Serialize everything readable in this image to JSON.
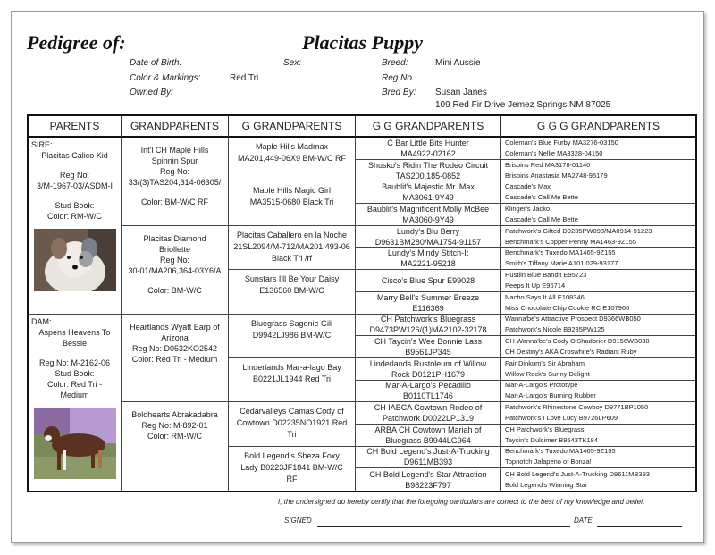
{
  "header": {
    "title_label": "Pedigree of:",
    "dog_name": "Placitas Puppy",
    "dob_label": "Date of Birth:",
    "dob": "",
    "sex_label": "Sex:",
    "sex": "",
    "breed_label": "Breed:",
    "breed": "Mini Aussie",
    "color_label": "Color & Markings:",
    "color": "Red Tri",
    "reg_label": "Reg No.:",
    "reg": "",
    "owned_label": "Owned By:",
    "owned": "",
    "bred_label": "Bred By:",
    "bred_name": "Susan Janes",
    "bred_address": "109 Red Fir Drive Jemez Springs NM 87025"
  },
  "columns": [
    "PARENTS",
    "GRANDPARENTS",
    "G GRANDPARENTS",
    "G G GRANDPARENTS",
    "G G G GRANDPARENTS"
  ],
  "parents": [
    {
      "role": "SIRE:",
      "lines": [
        "Placitas Calico Kid",
        "",
        "Reg No:",
        "3/M-1967-03/ASDM-I",
        "",
        "Stud Book:",
        "Color: RM-W/C"
      ],
      "photo": "puppy-photo"
    },
    {
      "role": "DAM:",
      "lines": [
        "Aspens Heavens To",
        "Bessie",
        "",
        "Reg No: M-2162-06",
        "Stud Book:",
        "Color: Red Tri -",
        "Medium"
      ],
      "photo": "dog-standing-photo"
    }
  ],
  "grandparents": [
    [
      "Int'l CH Maple Hills",
      "Spinnin Spur",
      "Reg No:",
      "33/(3)TAS204,314-06305/",
      "",
      "Color: BM-W/C RF"
    ],
    [
      "Placitas Diamond",
      "Briollette",
      "Reg No:",
      "30-01/MA206,364-03Y6/A",
      "",
      "Color: BM-W/C"
    ],
    [
      "Heartlands Wyatt Earp of",
      "Arizona",
      "Reg No: D0532KO2542",
      "Color: Red Tri - Medium"
    ],
    [
      "Boldhearts Abrakadabra",
      "Reg No: M-892-01",
      "Color: RM-W/C"
    ]
  ],
  "g_grandparents": [
    [
      "Maple Hills Madmax",
      "MA201,449-06X9 BM-W/C RF"
    ],
    [
      "Maple Hills Magic Girl",
      "MA3515-0680 Black Tri"
    ],
    [
      "Placitas Caballero en la Noche",
      "21SL2094/M-712/MA201,493-06",
      "Black Tri /rf"
    ],
    [
      "Sunstars I'll Be Your Daisy",
      "E136560 BM-W/C"
    ],
    [
      "Bluegrass Sagonie Gili",
      "D9942LJ986 BM-W/C"
    ],
    [
      "Linderlands Mar-a-lago Bay",
      "B0221JL1944 Red Tri"
    ],
    [
      "Cedarvalleys Camas Cody of",
      "Cowtown D02235NO1921 Red",
      "Tri"
    ],
    [
      "Bold Legend's Sheza Foxy",
      "Lady B0223JF1841 BM-W/C",
      "RF"
    ]
  ],
  "gg_grandparents": [
    [
      "C Bar Little Bits Hunter",
      "MA4922-02162"
    ],
    [
      "Shusko's Ridin The Rodeo Circuit",
      "TAS200,185-0852"
    ],
    [
      "Baublit's Majestic Mr. Max",
      "MA3061-9Y49"
    ],
    [
      "Baublit's Magnificent Molly McBee",
      "MA3060-9Y49"
    ],
    [
      "Lundy's Blu Berry",
      "D9631BM280/MA1754-91157"
    ],
    [
      "Lundy's Mindy Stitch-It",
      "MA2221-95218"
    ],
    [
      "Cisco's Blue Spur E99028"
    ],
    [
      "Marry Bell's Summer Breeze",
      "E116369"
    ],
    [
      "CH Patchwork's Bluegrass",
      "D9473PW126/(1)MA2102-32178"
    ],
    [
      "CH Taycin's Wee Bonnie Lass",
      "B9561JP345"
    ],
    [
      "Linderlands Rustoleum of Willow",
      "Rock D0121PH1679"
    ],
    [
      "Mar-A-Largo's Pecadillo",
      "B0110TL1746"
    ],
    [
      "CH IABCA Cowtown Rodeo of",
      "Patchwork D0022LP1319"
    ],
    [
      "ARBA CH Cowtown Mariah of",
      "Bluegrass B9944LG964"
    ],
    [
      "CH Bold Legend's Just-A-Trucking",
      "D9611MB393"
    ],
    [
      "CH Bold Legend's Star Attraction",
      "B98223F797"
    ]
  ],
  "ggg_grandparents": [
    [
      "Coleman's Blue Furby MA3276-03150",
      "Coleman's Nellie MA3328-04150"
    ],
    [
      "Brisbins Red MA3178-01140",
      "Brisbins Anastasia MA2748-95179"
    ],
    [
      "Cascade's Max",
      "Cascade's Call Me Bette"
    ],
    [
      "Klinger's Jacko",
      "Cascade's Call Me Bette"
    ],
    [
      "Patchwork's Gifted D9235PW098/MA0914-91223",
      "Benchmark's Copper Penny MA1463-9Z155"
    ],
    [
      "Benchmark's Tuxedo MA1465-9Z155",
      "Smith's Tiffany Marie A101,029-93177"
    ],
    [
      "Hustlin Blue Bandit E95723",
      "Peeps It Up E96714"
    ],
    [
      "Nacho Says It All E108346",
      "Miss Chocolate Chip Cookie RC E107966"
    ],
    [
      "Wanna'be's Attractive Prospect D9366WB050",
      "Patchwork's Nicole B9235PW125"
    ],
    [
      "CH Wanna'be's Cody O'Shadbrier D9156WB038",
      "CH Destiny's AKA Croswhite's Radiant Ruby"
    ],
    [
      "Fair Dinkum's Sir Abraham",
      "Willow Rock's Sunny Delight"
    ],
    [
      "Mar-A-Largo's Prototype",
      "Mar-A-Largo's Burning Rubber"
    ],
    [
      "Patchwork's Rhinestone Cowboy D9771BP1050",
      "Patchwork's I Love Lucy B9726LP609"
    ],
    [
      "CH Patchwork's Bluegrass",
      "Taycin's Dulcimer B9543TK184"
    ],
    [
      "Benchmark's Tuxedo MA1465-9Z155",
      "Topnotch Jalapeno of Bonza!"
    ],
    [
      "CH Bold Legend's Just-A-Trucking D9611MB393",
      "Bold Legend's Winning Star"
    ]
  ],
  "footer": {
    "certification": "I, the undersigned do hereby certify that the foregoing particulars are correct to the best of my knowledge and belief.",
    "signed_label": "SIGNED",
    "date_label": "DATE"
  }
}
